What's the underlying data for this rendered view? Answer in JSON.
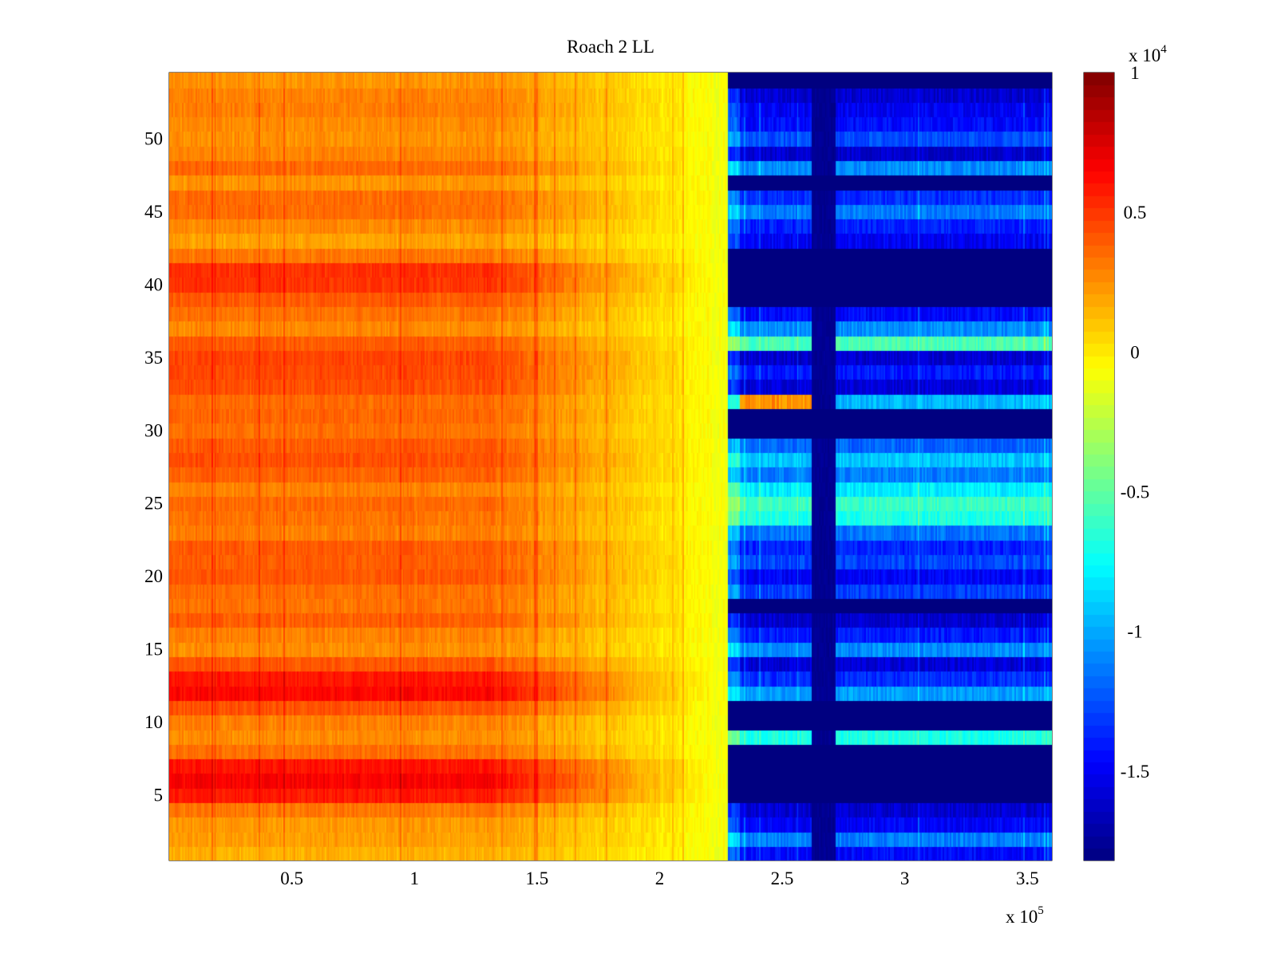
{
  "chart_data": {
    "type": "heatmap",
    "title": "Roach 2 LL",
    "xlabel": "",
    "ylabel": "",
    "x_range": [
      0,
      360000
    ],
    "y_range": [
      0.5,
      54.5
    ],
    "rows": 54,
    "x_ticks": [
      {
        "value": 50000,
        "label": "0.5"
      },
      {
        "value": 100000,
        "label": "1"
      },
      {
        "value": 150000,
        "label": "1.5"
      },
      {
        "value": 200000,
        "label": "2"
      },
      {
        "value": 250000,
        "label": "2.5"
      },
      {
        "value": 300000,
        "label": "3"
      },
      {
        "value": 350000,
        "label": "3.5"
      }
    ],
    "x_exponent_label": "x 10",
    "x_exponent_power": "5",
    "y_ticks": [
      {
        "value": 5,
        "label": "5"
      },
      {
        "value": 10,
        "label": "10"
      },
      {
        "value": 15,
        "label": "15"
      },
      {
        "value": 20,
        "label": "20"
      },
      {
        "value": 25,
        "label": "25"
      },
      {
        "value": 30,
        "label": "30"
      },
      {
        "value": 35,
        "label": "35"
      },
      {
        "value": 40,
        "label": "40"
      },
      {
        "value": 45,
        "label": "45"
      },
      {
        "value": 50,
        "label": "50"
      }
    ],
    "colorbar": {
      "range": [
        -18200,
        10000
      ],
      "colormap": "jet",
      "ticks": [
        {
          "value": 10000,
          "label": "1"
        },
        {
          "value": 5000,
          "label": "0.5"
        },
        {
          "value": 0,
          "label": "0"
        },
        {
          "value": -5000,
          "label": "-0.5"
        },
        {
          "value": -10000,
          "label": "-1"
        },
        {
          "value": -15000,
          "label": "-1.5"
        }
      ],
      "exponent_label": "x 10",
      "exponent_power": "4"
    },
    "transition_x": 228000,
    "dark_band_x": [
      262000,
      272000
    ],
    "left_region_row_values": [
      1600,
      2100,
      2200,
      3200,
      5800,
      6600,
      6000,
      3400,
      2600,
      2900,
      4200,
      6400,
      5900,
      4100,
      2600,
      2900,
      3900,
      3300,
      3400,
      4100,
      3900,
      4000,
      3000,
      3300,
      3600,
      2900,
      3800,
      4300,
      4000,
      3400,
      3700,
      3500,
      4300,
      4500,
      4600,
      4000,
      2700,
      3300,
      4000,
      5100,
      5200,
      3200,
      2000,
      2700,
      3500,
      3500,
      2400,
      3600,
      2800,
      2500,
      2600,
      3000,
      2900,
      2400
    ],
    "right_region_row_values": [
      -14500,
      -11200,
      -14800,
      -16000,
      -18200,
      -18200,
      -18200,
      -18200,
      -6900,
      -18200,
      -18200,
      -10300,
      -13500,
      -15800,
      -10800,
      -14000,
      -16000,
      -18200,
      -13000,
      -14800,
      -12800,
      -13800,
      -11500,
      -6900,
      -6000,
      -8100,
      -11200,
      -9200,
      -11900,
      -18200,
      -18200,
      -9600,
      -15700,
      -14000,
      -16000,
      -5600,
      -10800,
      -14500,
      -18200,
      -18200,
      -18200,
      -18200,
      -15000,
      -13800,
      -11300,
      -13500,
      -18200,
      -10800,
      -16000,
      -12600,
      -14500,
      -15000,
      -16000,
      -18200
    ],
    "special_segment": {
      "row": 32,
      "x_range": [
        233000,
        262000
      ],
      "value": 2500
    }
  }
}
